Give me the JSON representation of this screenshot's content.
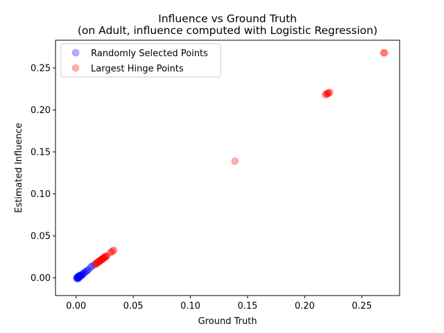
{
  "chart_data": {
    "type": "scatter",
    "title": "Influence vs Ground Truth",
    "subtitle": "(on Adult, influence computed with Logistic Regression)",
    "xlabel": "Ground Truth",
    "ylabel": "Estimated Influence",
    "xlim": [
      -0.018,
      0.283
    ],
    "ylim": [
      -0.021,
      0.283
    ],
    "xticks": [
      0.0,
      0.05,
      0.1,
      0.15,
      0.2,
      0.25
    ],
    "xtick_labels": [
      "0.00",
      "0.05",
      "0.10",
      "0.15",
      "0.20",
      "0.25"
    ],
    "yticks": [
      0.0,
      0.05,
      0.1,
      0.15,
      0.2,
      0.25
    ],
    "ytick_labels": [
      "0.00",
      "0.05",
      "0.10",
      "0.15",
      "0.20",
      "0.25"
    ],
    "grid": false,
    "legend_position": "top-left",
    "series": [
      {
        "name": "Randomly Selected Points",
        "color": "#0000ff",
        "alpha": 0.3,
        "points": [
          [
            0.001,
            0.0
          ],
          [
            0.002,
            0.001
          ],
          [
            0.001,
            0.001
          ],
          [
            0.002,
            0.0
          ],
          [
            0.003,
            0.002
          ],
          [
            0.002,
            0.002
          ],
          [
            0.001,
            -0.001
          ],
          [
            0.003,
            0.001
          ],
          [
            0.004,
            0.003
          ],
          [
            0.004,
            0.002
          ],
          [
            0.005,
            0.004
          ],
          [
            0.005,
            0.003
          ],
          [
            0.006,
            0.005
          ],
          [
            0.006,
            0.004
          ],
          [
            0.007,
            0.006
          ],
          [
            0.008,
            0.007
          ],
          [
            0.003,
            0.003
          ],
          [
            0.002,
            -0.001
          ],
          [
            0.0015,
            0.0005
          ],
          [
            0.0025,
            0.0015
          ],
          [
            0.01,
            0.009
          ],
          [
            0.011,
            0.01
          ],
          [
            0.013,
            0.013
          ],
          [
            0.014,
            0.014
          ],
          [
            0.016,
            0.016
          ],
          [
            0.009,
            0.008
          ],
          [
            0.0005,
            0.0
          ],
          [
            0.0035,
            0.0025
          ]
        ]
      },
      {
        "name": "Largest Hinge Points",
        "color": "#ff0000",
        "alpha": 0.3,
        "points": [
          [
            0.017,
            0.016
          ],
          [
            0.018,
            0.017
          ],
          [
            0.019,
            0.018
          ],
          [
            0.019,
            0.019
          ],
          [
            0.02,
            0.019
          ],
          [
            0.02,
            0.02
          ],
          [
            0.021,
            0.02
          ],
          [
            0.021,
            0.021
          ],
          [
            0.022,
            0.021
          ],
          [
            0.022,
            0.022
          ],
          [
            0.023,
            0.022
          ],
          [
            0.023,
            0.023
          ],
          [
            0.024,
            0.023
          ],
          [
            0.024,
            0.024
          ],
          [
            0.025,
            0.025
          ],
          [
            0.026,
            0.025
          ],
          [
            0.026,
            0.026
          ],
          [
            0.027,
            0.026
          ],
          [
            0.025,
            0.024
          ],
          [
            0.018,
            0.018
          ],
          [
            0.03,
            0.03
          ],
          [
            0.031,
            0.031
          ],
          [
            0.032,
            0.032
          ],
          [
            0.033,
            0.033
          ],
          [
            0.139,
            0.139
          ],
          [
            0.218,
            0.218
          ],
          [
            0.219,
            0.219
          ],
          [
            0.22,
            0.22
          ],
          [
            0.221,
            0.22
          ],
          [
            0.222,
            0.221
          ],
          [
            0.22,
            0.219
          ],
          [
            0.269,
            0.268
          ],
          [
            0.27,
            0.268
          ]
        ]
      }
    ]
  }
}
